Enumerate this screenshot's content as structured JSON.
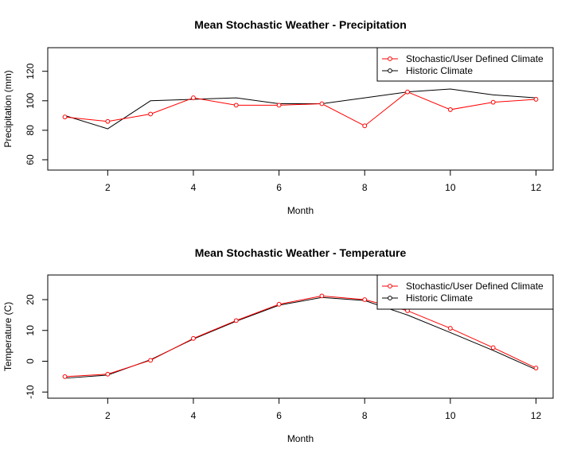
{
  "chart_data": [
    {
      "type": "line",
      "title": "Mean Stochastic Weather - Precipitation",
      "xlabel": "Month",
      "ylabel": "Precipitation (mm)",
      "xlim": [
        0.6,
        12.4
      ],
      "ylim": [
        53,
        136
      ],
      "xticks": [
        2,
        4,
        6,
        8,
        10,
        12
      ],
      "yticks": [
        60,
        80,
        100,
        120
      ],
      "grid": false,
      "legend_position": "top-right",
      "x": [
        1,
        2,
        3,
        4,
        5,
        6,
        7,
        8,
        9,
        10,
        11,
        12
      ],
      "series": [
        {
          "name": "Stochastic/User Defined Climate",
          "color": "#ff0000",
          "markers": true,
          "values": [
            89,
            86,
            91,
            102,
            97,
            97,
            98,
            83,
            106,
            94,
            99,
            101
          ]
        },
        {
          "name": "Historic Climate",
          "color": "#000000",
          "markers": false,
          "values": [
            90,
            81,
            100,
            101,
            102,
            98,
            98,
            102,
            106,
            108,
            104,
            102
          ]
        }
      ]
    },
    {
      "type": "line",
      "title": "Mean Stochastic Weather - Temperature",
      "xlabel": "Month",
      "ylabel": "Temperature (C)",
      "xlim": [
        0.6,
        12.4
      ],
      "ylim": [
        -12,
        28
      ],
      "xticks": [
        2,
        4,
        6,
        8,
        10,
        12
      ],
      "yticks": [
        -10,
        0,
        10,
        20
      ],
      "grid": false,
      "legend_position": "top-right",
      "x": [
        1,
        2,
        3,
        4,
        5,
        6,
        7,
        8,
        9,
        10,
        11,
        12
      ],
      "series": [
        {
          "name": "Stochastic/User Defined Climate",
          "color": "#ff0000",
          "markers": true,
          "values": [
            -5,
            -4.2,
            0.3,
            7.4,
            13.2,
            18.5,
            21.2,
            20,
            16.4,
            10.7,
            4.4,
            -2.2
          ]
        },
        {
          "name": "Historic Climate",
          "color": "#000000",
          "markers": false,
          "values": [
            -5.5,
            -4.5,
            0.5,
            7.2,
            13,
            18.2,
            20.7,
            19.7,
            15,
            9.3,
            3.5,
            -2.7
          ]
        }
      ]
    }
  ]
}
